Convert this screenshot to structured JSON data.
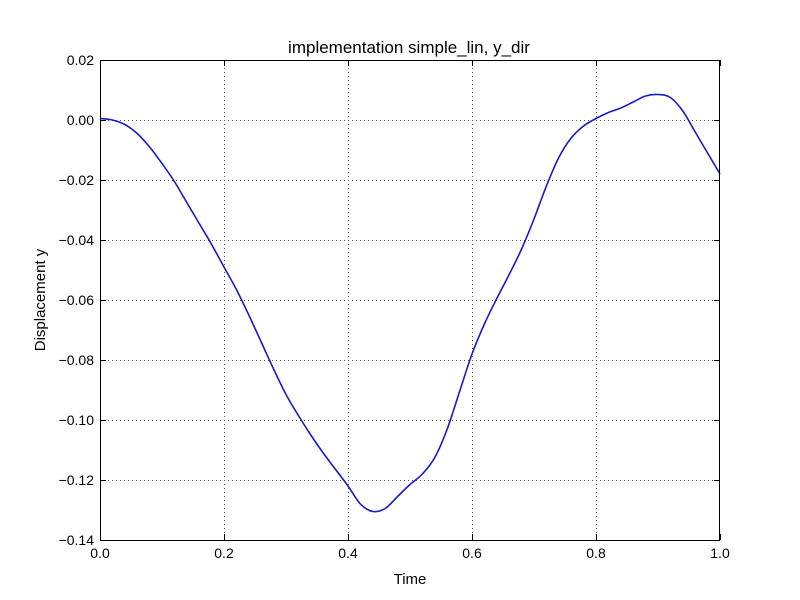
{
  "chart_data": {
    "type": "line",
    "title": "implementation simple_lin, y_dir",
    "xlabel": "Time",
    "ylabel": "Displacement y",
    "xlim": [
      0,
      1
    ],
    "ylim": [
      -0.14,
      0.02
    ],
    "xticks": [
      0,
      0.2,
      0.4,
      0.6,
      0.8,
      1.0
    ],
    "xtick_labels": [
      "0.0",
      "0.2",
      "0.4",
      "0.6",
      "0.8",
      "1.0"
    ],
    "yticks": [
      0.02,
      0,
      -0.02,
      -0.04,
      -0.06,
      -0.08,
      -0.1,
      -0.12,
      -0.14
    ],
    "ytick_labels": [
      "0.02",
      "0.00",
      "−0.02",
      "−0.04",
      "−0.06",
      "−0.08",
      "−0.10",
      "−0.12",
      "−0.14"
    ],
    "grid": true,
    "series": [
      {
        "color": "#1a1ac8",
        "x": [
          0,
          0.02,
          0.04,
          0.06,
          0.08,
          0.1,
          0.12,
          0.14,
          0.16,
          0.18,
          0.2,
          0.22,
          0.24,
          0.26,
          0.28,
          0.3,
          0.32,
          0.34,
          0.36,
          0.38,
          0.4,
          0.42,
          0.44,
          0.46,
          0.48,
          0.5,
          0.52,
          0.54,
          0.56,
          0.58,
          0.6,
          0.62,
          0.64,
          0.66,
          0.68,
          0.7,
          0.72,
          0.74,
          0.76,
          0.78,
          0.8,
          0.82,
          0.84,
          0.86,
          0.88,
          0.9,
          0.92,
          0.94,
          0.96,
          0.98,
          1.0
        ],
        "y": [
          0.0005,
          0.0,
          -0.0015,
          -0.0045,
          -0.009,
          -0.0145,
          -0.0205,
          -0.0275,
          -0.0345,
          -0.0415,
          -0.049,
          -0.0565,
          -0.065,
          -0.074,
          -0.083,
          -0.0915,
          -0.0985,
          -0.105,
          -0.111,
          -0.1165,
          -0.122,
          -0.128,
          -0.1305,
          -0.1295,
          -0.1255,
          -0.1215,
          -0.118,
          -0.1125,
          -0.103,
          -0.0905,
          -0.078,
          -0.068,
          -0.0595,
          -0.0515,
          -0.043,
          -0.033,
          -0.022,
          -0.0125,
          -0.006,
          -0.002,
          0.0005,
          0.0025,
          0.004,
          0.006,
          0.008,
          0.0085,
          0.0075,
          0.003,
          -0.004,
          -0.011,
          -0.018
        ]
      }
    ]
  }
}
